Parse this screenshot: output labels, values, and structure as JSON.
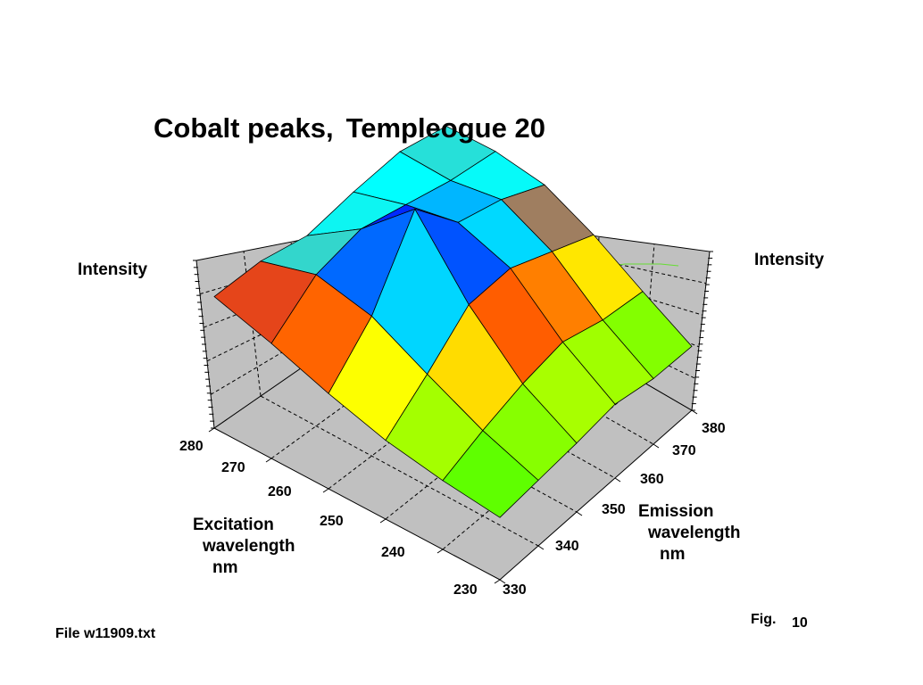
{
  "chart_data": {
    "type": "surface",
    "title_part1": "Cobalt peaks,",
    "title_part2": "Templeogue 20",
    "z_label_left": "Intensity",
    "z_label_right": "Intensity",
    "x_label_lines": [
      "Excitation",
      "wavelength",
      "nm"
    ],
    "y_label_lines": [
      "Emission",
      "wavelength",
      "nm"
    ],
    "x_ticks": [
      "280",
      "270",
      "260",
      "250",
      "240",
      "230"
    ],
    "y_ticks": [
      "330",
      "340",
      "350",
      "360",
      "370",
      "380"
    ],
    "x": [
      230,
      240,
      250,
      260,
      270,
      280
    ],
    "y": [
      330,
      340,
      350,
      360,
      370,
      380
    ],
    "z_rows_by_excitation": [
      [
        0.08,
        0.1,
        0.12,
        0.15,
        0.1,
        0.09
      ],
      [
        0.12,
        0.22,
        0.3,
        0.35,
        0.28,
        0.25
      ],
      [
        0.18,
        0.38,
        0.6,
        0.62,
        0.52,
        0.42
      ],
      [
        0.28,
        0.55,
        1.0,
        0.72,
        0.66,
        0.55
      ],
      [
        0.4,
        0.62,
        0.7,
        0.65,
        0.6,
        0.58
      ],
      [
        0.5,
        0.52,
        0.48,
        0.55,
        0.6,
        0.56
      ]
    ],
    "grid": true,
    "contours_projected_on_top": true,
    "colormap": [
      "#ff00ff",
      "#0000ff",
      "#00ffff",
      "#00ff00",
      "#ffff00",
      "#ff0000"
    ]
  },
  "footer": {
    "file_label": "File w11909.txt",
    "fig_label": "Fig.",
    "fig_number": "10"
  }
}
